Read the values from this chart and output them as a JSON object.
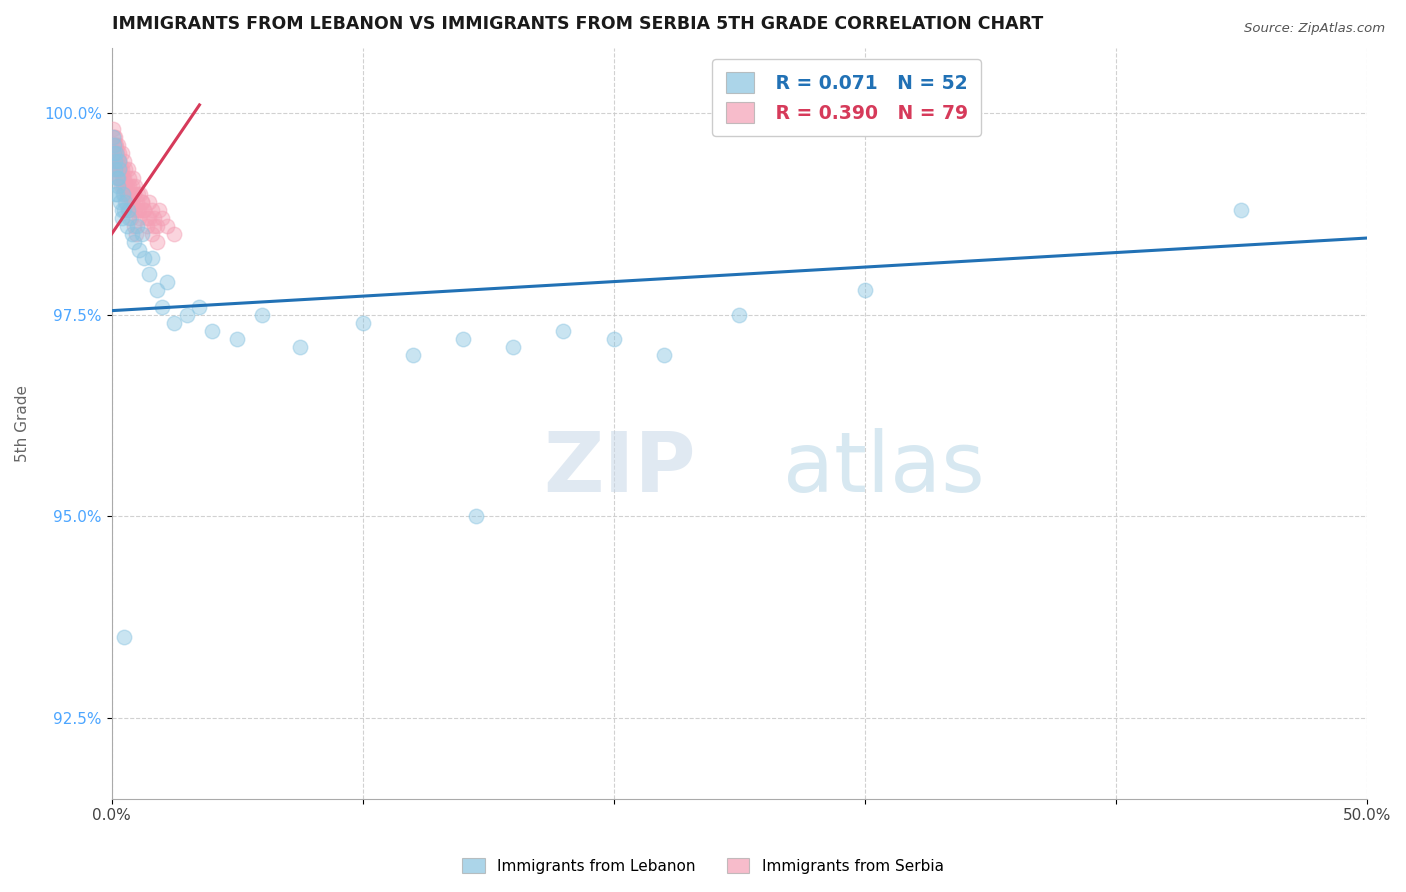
{
  "title": "IMMIGRANTS FROM LEBANON VS IMMIGRANTS FROM SERBIA 5TH GRADE CORRELATION CHART",
  "source": "Source: ZipAtlas.com",
  "ylabel": "5th Grade",
  "legend_label1": "Immigrants from Lebanon",
  "legend_label2": "Immigrants from Serbia",
  "R1": 0.071,
  "N1": 52,
  "R2": 0.39,
  "N2": 79,
  "color1": "#89c4e1",
  "color2": "#f4a0b5",
  "trendline1_color": "#2171b5",
  "trendline2_color": "#d63a5a",
  "xlim": [
    0.0,
    50.0
  ],
  "ylim": [
    91.5,
    100.8
  ],
  "xtick_positions": [
    0.0,
    10.0,
    20.0,
    30.0,
    40.0,
    50.0
  ],
  "xtick_labels": [
    "0.0%",
    "",
    "",
    "",
    "",
    "50.0%"
  ],
  "ytick_positions": [
    92.5,
    95.0,
    97.5,
    100.0
  ],
  "ytick_labels": [
    "92.5%",
    "95.0%",
    "97.5%",
    "100.0%"
  ],
  "watermark_zip": "ZIP",
  "watermark_atlas": "atlas",
  "lebanon_x": [
    0.05,
    0.08,
    0.1,
    0.12,
    0.15,
    0.18,
    0.2,
    0.22,
    0.25,
    0.28,
    0.3,
    0.35,
    0.4,
    0.45,
    0.5,
    0.55,
    0.6,
    0.65,
    0.7,
    0.8,
    0.9,
    1.0,
    1.1,
    1.3,
    1.5,
    1.8,
    2.0,
    2.5,
    3.0,
    4.0,
    5.0,
    6.0,
    7.5,
    10.0,
    12.0,
    14.0,
    16.0,
    18.0,
    20.0,
    22.0,
    1.2,
    1.6,
    2.2,
    3.5,
    45.0,
    25.0,
    30.0,
    0.15,
    0.25,
    0.4,
    0.5,
    14.5
  ],
  "lebanon_y": [
    99.7,
    99.5,
    99.6,
    99.4,
    99.3,
    99.5,
    99.2,
    99.0,
    99.1,
    99.3,
    99.4,
    98.9,
    98.7,
    99.0,
    98.8,
    98.9,
    98.6,
    98.8,
    98.7,
    98.5,
    98.4,
    98.6,
    98.3,
    98.2,
    98.0,
    97.8,
    97.6,
    97.4,
    97.5,
    97.3,
    97.2,
    97.5,
    97.1,
    97.4,
    97.0,
    97.2,
    97.1,
    97.3,
    97.2,
    97.0,
    98.5,
    98.2,
    97.9,
    97.6,
    98.8,
    97.5,
    97.8,
    99.0,
    99.2,
    98.8,
    93.5,
    95.0
  ],
  "serbia_x": [
    0.05,
    0.08,
    0.1,
    0.12,
    0.15,
    0.18,
    0.2,
    0.22,
    0.25,
    0.28,
    0.3,
    0.35,
    0.4,
    0.45,
    0.5,
    0.55,
    0.6,
    0.65,
    0.7,
    0.75,
    0.8,
    0.85,
    0.9,
    0.95,
    1.0,
    1.05,
    1.1,
    1.15,
    1.2,
    1.3,
    1.4,
    1.5,
    1.6,
    1.7,
    1.8,
    1.9,
    2.0,
    2.2,
    2.5,
    0.1,
    0.15,
    0.2,
    0.25,
    0.3,
    0.35,
    0.4,
    0.45,
    0.5,
    0.6,
    0.7,
    0.8,
    0.9,
    1.0,
    1.1,
    1.2,
    1.3,
    1.4,
    1.5,
    1.6,
    1.7,
    1.8,
    0.12,
    0.18,
    0.22,
    0.28,
    0.32,
    0.38,
    0.42,
    0.48,
    0.52,
    0.58,
    0.62,
    0.68,
    0.72,
    0.78,
    0.82,
    0.88,
    0.92,
    0.98
  ],
  "serbia_y": [
    99.8,
    99.7,
    99.6,
    99.5,
    99.7,
    99.6,
    99.5,
    99.4,
    99.6,
    99.5,
    99.4,
    99.3,
    99.5,
    99.2,
    99.4,
    99.3,
    99.1,
    99.3,
    99.2,
    99.0,
    99.1,
    99.2,
    99.0,
    99.1,
    98.9,
    99.0,
    98.8,
    99.0,
    98.9,
    98.8,
    98.7,
    98.9,
    98.8,
    98.7,
    98.6,
    98.8,
    98.7,
    98.6,
    98.5,
    99.3,
    99.5,
    99.4,
    99.3,
    99.4,
    99.2,
    99.3,
    99.1,
    99.2,
    99.0,
    99.1,
    98.9,
    99.0,
    98.8,
    98.7,
    98.9,
    98.8,
    98.6,
    98.7,
    98.5,
    98.6,
    98.4,
    99.6,
    99.4,
    99.3,
    99.2,
    99.3,
    99.1,
    99.2,
    99.0,
    99.1,
    98.9,
    99.0,
    98.8,
    99.0,
    98.7,
    98.9,
    98.6,
    98.8,
    98.5
  ],
  "trendline1_x0": 0.0,
  "trendline1_y0": 97.55,
  "trendline1_x1": 50.0,
  "trendline1_y1": 98.45,
  "trendline2_x0": 0.0,
  "trendline2_y0": 98.5,
  "trendline2_x1": 3.5,
  "trendline2_y1": 100.1
}
